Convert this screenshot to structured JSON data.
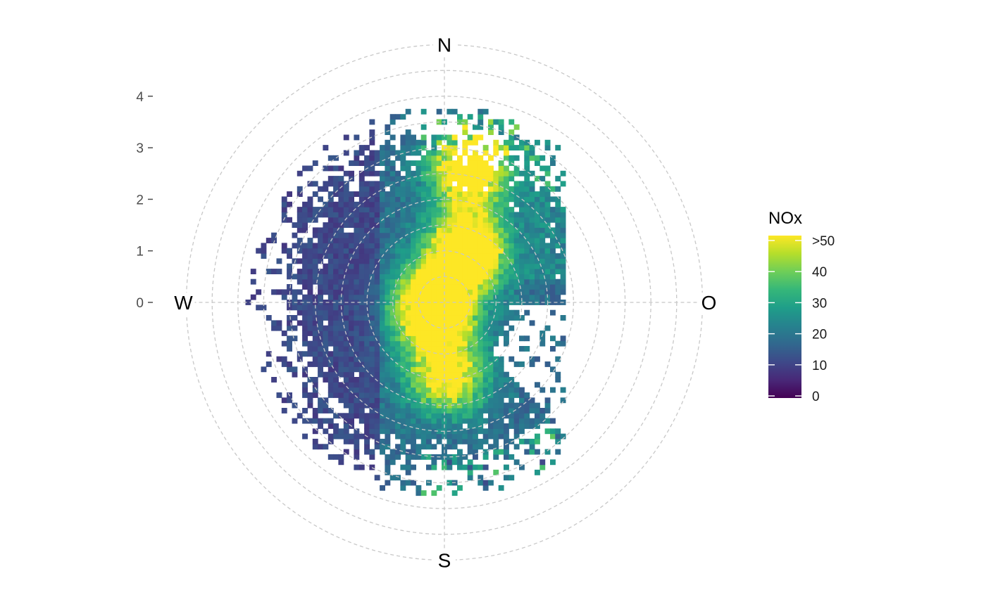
{
  "chart_data": {
    "type": "heatmap",
    "subtype": "polar-plot",
    "title": "",
    "radial_axis": {
      "ticks": [
        0,
        1,
        2,
        3,
        4
      ],
      "tick_labels": [
        "0",
        "1",
        "2",
        "3",
        "4"
      ],
      "range": [
        0,
        5
      ]
    },
    "directions": [
      "N",
      "O",
      "S",
      "W"
    ],
    "legend": {
      "title": "NOx",
      "placement": "right",
      "ticks": [
        0,
        10,
        20,
        30,
        40,
        50
      ],
      "tick_labels": [
        "0",
        "10",
        "20",
        "30",
        "40",
        ">50"
      ],
      "range": [
        0,
        50
      ]
    },
    "colormap": [
      "#440154",
      "#482878",
      "#3e4989",
      "#31688e",
      "#26828e",
      "#1f9e89",
      "#35b779",
      "#6ece58",
      "#b5de2b",
      "#fde725"
    ],
    "hotspots": [
      {
        "u": -0.2,
        "v": -0.1,
        "value": 58
      },
      {
        "u": 0.45,
        "v": 1.0,
        "value": 55
      },
      {
        "u": 0.5,
        "v": 2.6,
        "value": 48
      },
      {
        "u": 0.05,
        "v": -1.4,
        "value": 38
      }
    ],
    "grid": true
  }
}
